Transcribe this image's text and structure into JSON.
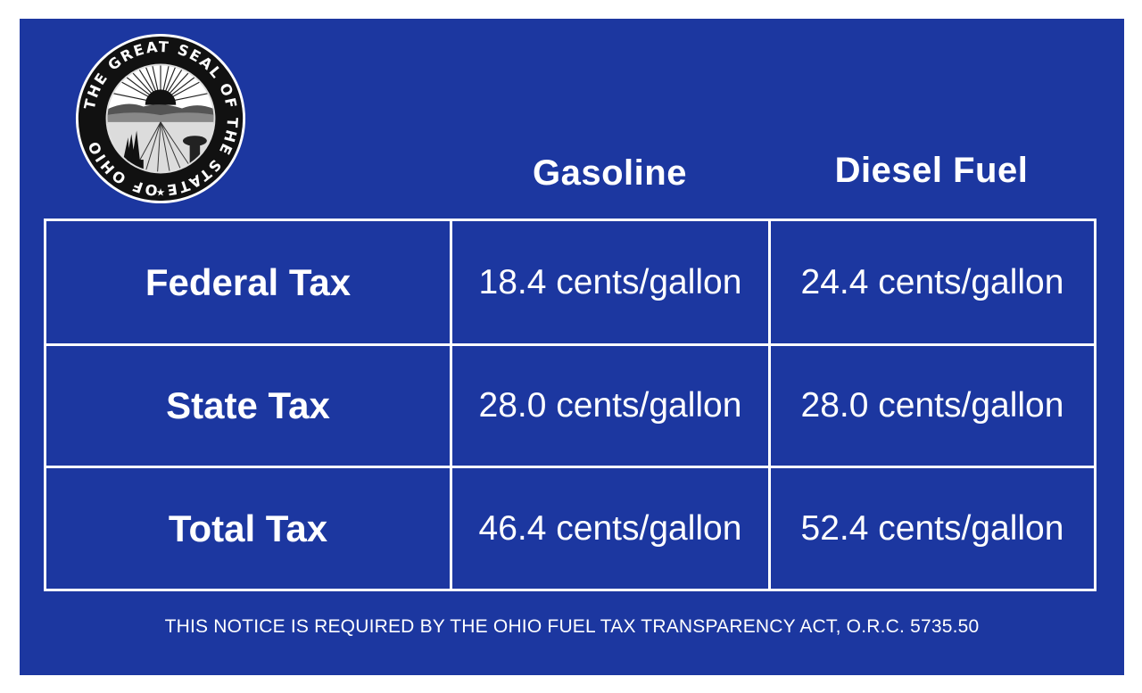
{
  "seal": {
    "text": "THE GREAT SEAL OF THE STATE OF OHIO"
  },
  "columns": {
    "gasoline": "Gasoline",
    "diesel": "Diesel Fuel"
  },
  "rows": [
    {
      "label": "Federal Tax",
      "gasoline": "18.4 cents/gallon",
      "diesel": "24.4 cents/gallon"
    },
    {
      "label": "State Tax",
      "gasoline": "28.0 cents/gallon",
      "diesel": "28.0 cents/gallon"
    },
    {
      "label": "Total Tax",
      "gasoline": "46.4 cents/gallon",
      "diesel": "52.4 cents/gallon"
    }
  ],
  "notice": "THIS NOTICE IS REQUIRED BY THE OHIO FUEL TAX TRANSPARENCY ACT, O.R.C. 5735.50",
  "colors": {
    "background": "#1c37a0",
    "text": "#ffffff"
  }
}
